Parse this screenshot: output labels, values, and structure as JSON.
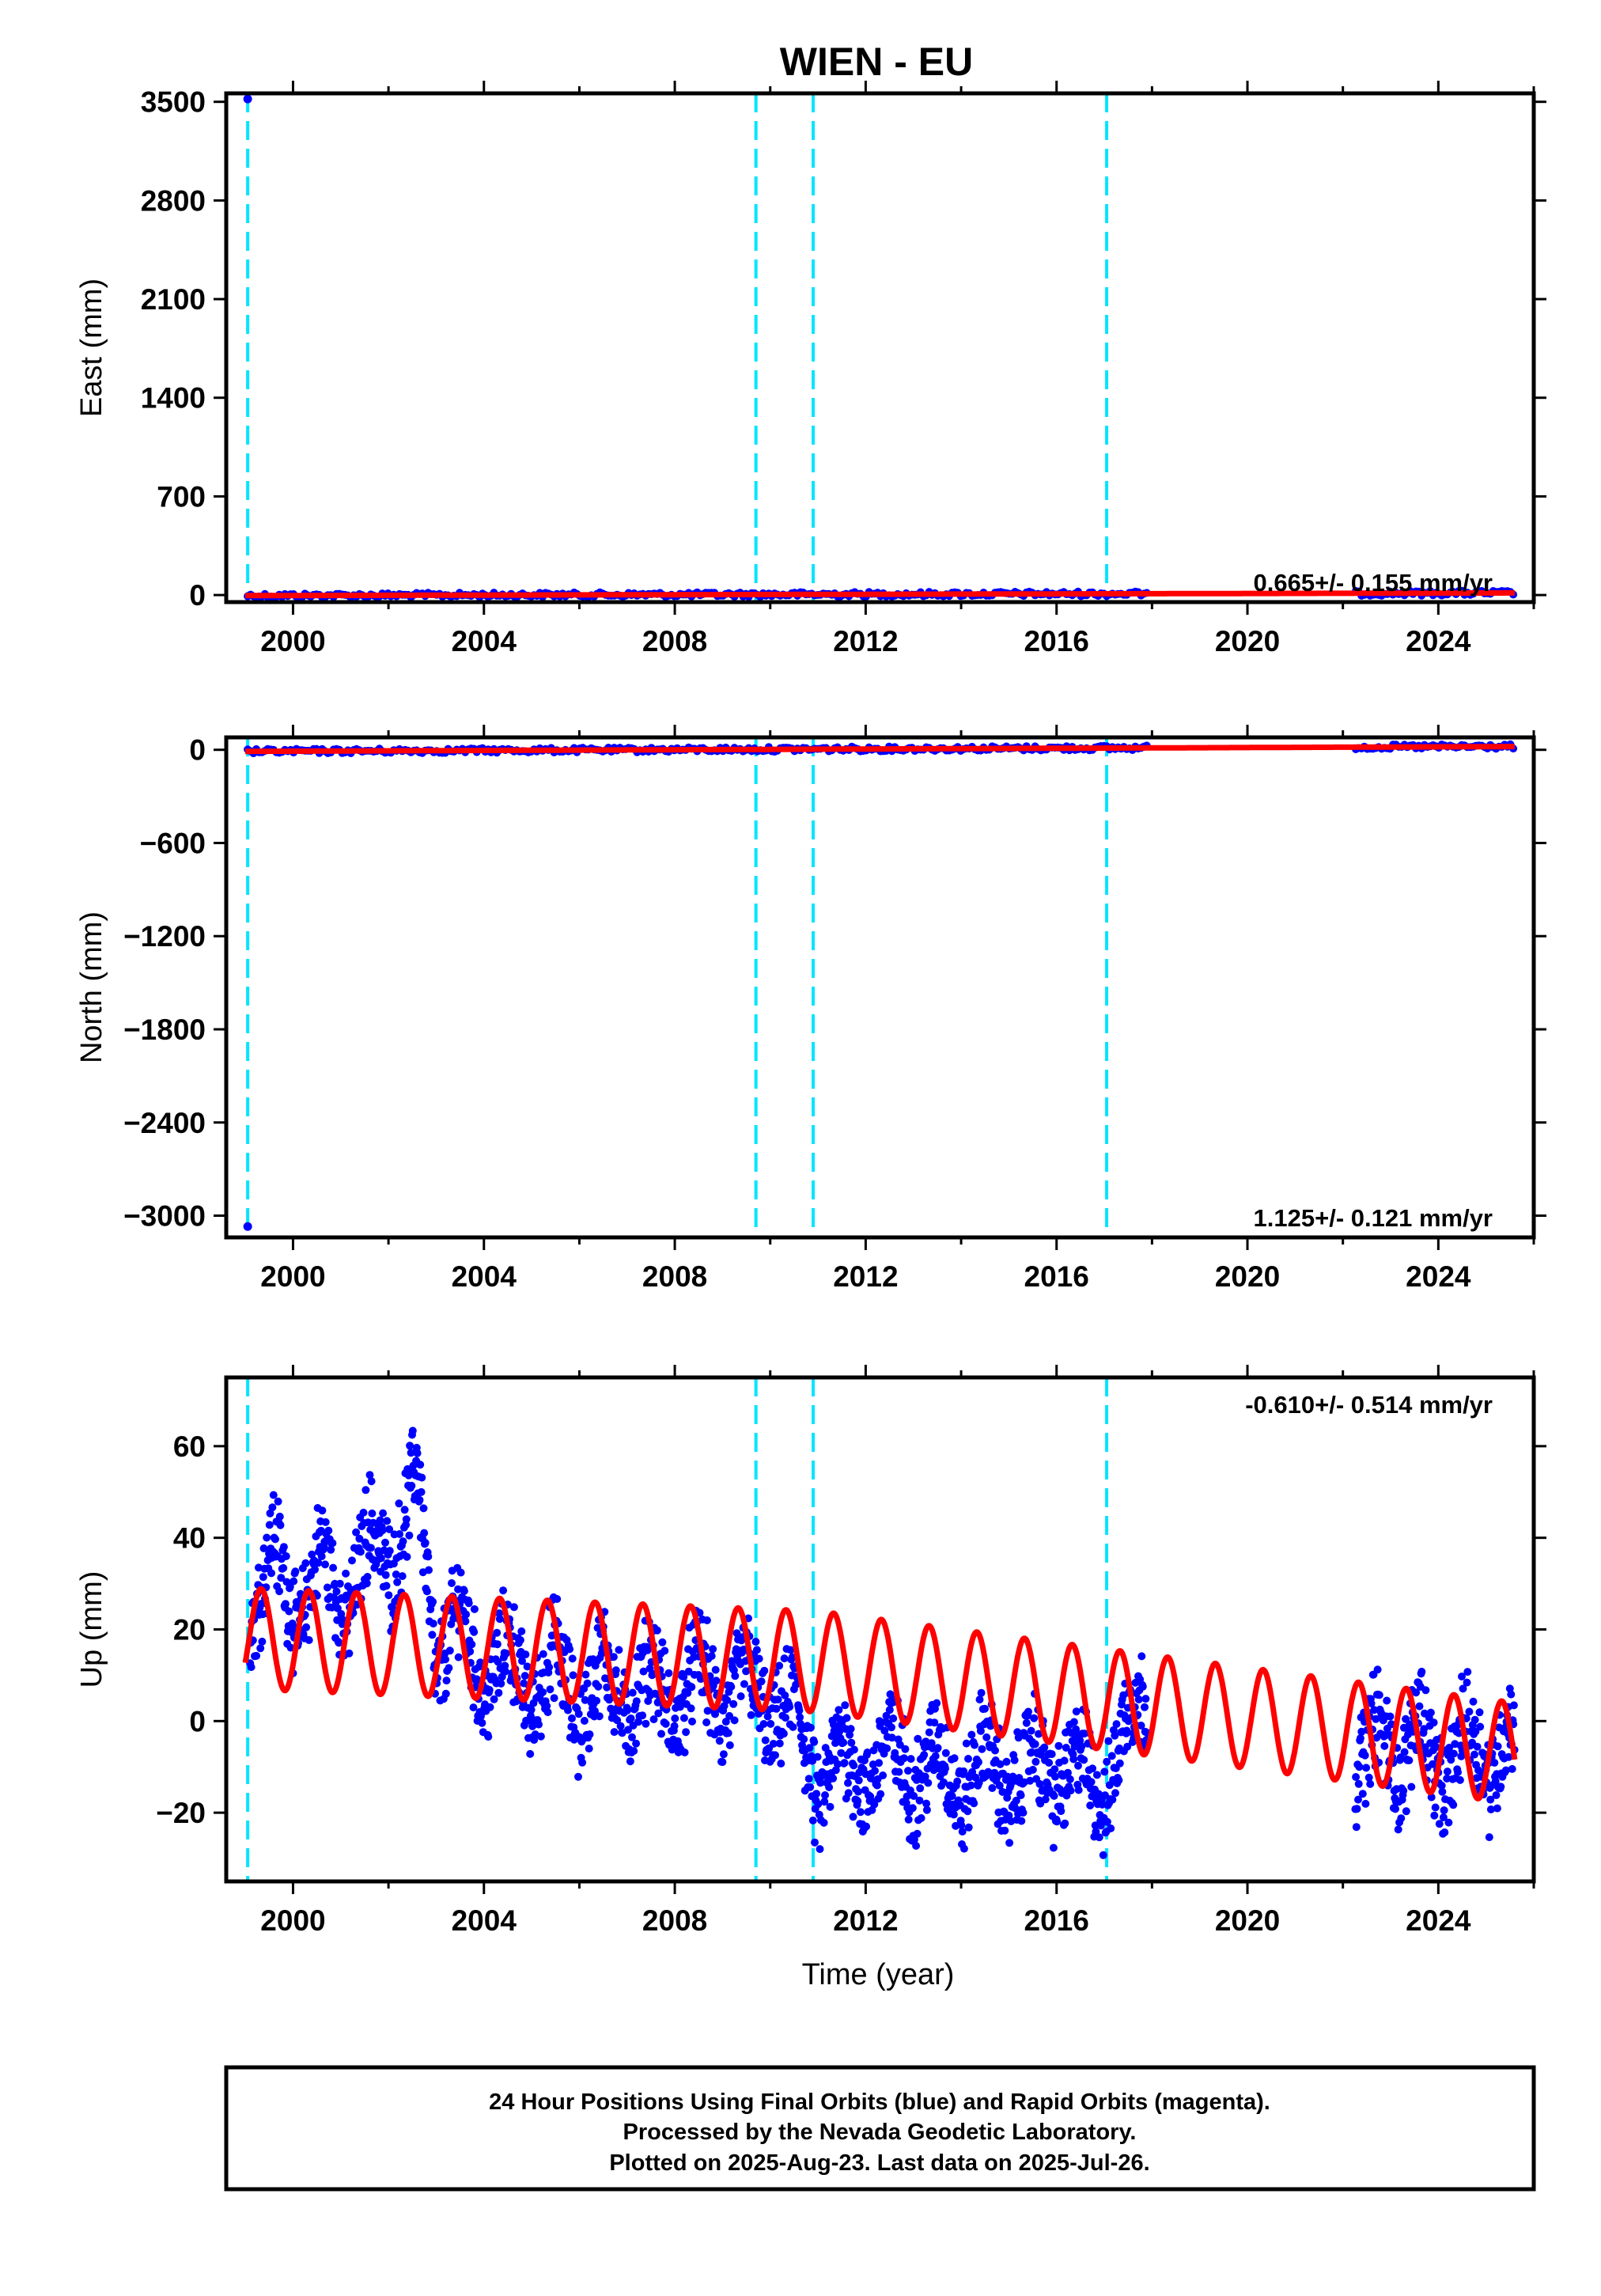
{
  "title": "WIEN - EU",
  "xlabel": "Time (year)",
  "footer": [
    "24 Hour Positions Using Final Orbits (blue) and Rapid Orbits (magenta).",
    "Processed by the Nevada Geodetic Laboratory.",
    "Plotted on 2025-Aug-23. Last data on 2025-Jul-26."
  ],
  "colors": {
    "data": "#0000ff",
    "model": "#ff0000",
    "breaks": "#00e5ff",
    "frame": "#000000"
  },
  "chart_data": [
    {
      "type": "scatter",
      "ylabel": "East (mm)",
      "rate_label": "0.665+/- 0.155 mm/yr",
      "xlim": [
        1998.6,
        2026.0
      ],
      "ylim": [
        -50,
        3560
      ],
      "xticks": [
        2000,
        2004,
        2008,
        2012,
        2016,
        2020,
        2024
      ],
      "yticks": [
        0,
        700,
        1400,
        2100,
        2800,
        3500
      ],
      "breaks": [
        1999.05,
        2009.7,
        2010.9,
        2017.05
      ],
      "outliers": [
        {
          "x": 1999.05,
          "y": 3520
        }
      ],
      "series": [
        {
          "kind": "points",
          "x": [
            1999.0,
            2001.0,
            2003.0,
            2005.0,
            2007.0,
            2009.0,
            2011.0,
            2013.0,
            2015.0,
            2017.5,
            2022.5,
            2025.5
          ],
          "y": [
            -4,
            -3,
            -1,
            1,
            2,
            3,
            5,
            6,
            8,
            9,
            12,
            15
          ]
        },
        {
          "kind": "model",
          "x": [
            1999.0,
            2025.6
          ],
          "y": [
            -4,
            15
          ]
        }
      ]
    },
    {
      "type": "scatter",
      "ylabel": "North (mm)",
      "rate_label": "1.125+/- 0.121 mm/yr",
      "xlim": [
        1998.6,
        2026.0
      ],
      "ylim": [
        -3140,
        80
      ],
      "xticks": [
        2000,
        2004,
        2008,
        2012,
        2016,
        2020,
        2024
      ],
      "yticks": [
        0,
        -600,
        -1200,
        -1800,
        -2400,
        -3000
      ],
      "breaks": [
        1999.05,
        2009.7,
        2010.9,
        2017.05
      ],
      "outliers": [
        {
          "x": 1999.05,
          "y": -3070
        }
      ],
      "series": [
        {
          "kind": "points",
          "x": [
            1999.0,
            2001.0,
            2003.0,
            2005.0,
            2007.0,
            2009.0,
            2011.0,
            2013.0,
            2015.0,
            2017.5,
            2022.5,
            2025.5
          ],
          "y": [
            -10,
            -8,
            -6,
            -3,
            -1,
            2,
            4,
            7,
            9,
            12,
            18,
            21
          ]
        },
        {
          "kind": "model",
          "x": [
            1999.0,
            2025.6
          ],
          "y": [
            -10,
            21
          ]
        }
      ]
    },
    {
      "type": "scatter",
      "ylabel": "Up (mm)",
      "rate_label": "-0.610+/- 0.514 mm/yr",
      "xlim": [
        1998.6,
        2026.0
      ],
      "ylim": [
        -35,
        75
      ],
      "xticks": [
        2000,
        2004,
        2008,
        2012,
        2016,
        2020,
        2024
      ],
      "yticks": [
        -20,
        0,
        20,
        40,
        60
      ],
      "breaks": [
        1999.05,
        2009.7,
        2010.9,
        2017.05
      ],
      "series": [
        {
          "kind": "points",
          "x": [
            1999.2,
            1999.6,
            2000.1,
            2000.6,
            2001.1,
            2001.6,
            2002.1,
            2002.6,
            2003.0,
            2003.5,
            2004.0,
            2004.5,
            2005.0,
            2005.5,
            2006.0,
            2006.5,
            2007.0,
            2007.5,
            2008.0,
            2008.5,
            2009.0,
            2009.5,
            2010.0,
            2010.5,
            2011.0,
            2011.5,
            2012.0,
            2012.5,
            2013.0,
            2013.5,
            2014.0,
            2014.5,
            2015.0,
            2015.5,
            2016.0,
            2016.5,
            2017.0,
            2017.5,
            2022.3,
            2022.7,
            2023.2,
            2023.6,
            2024.1,
            2024.6,
            2025.1,
            2025.5
          ],
          "y": [
            22,
            42,
            18,
            40,
            20,
            44,
            30,
            58,
            8,
            28,
            3,
            20,
            0,
            18,
            -3,
            16,
            -2,
            15,
            -3,
            16,
            -2,
            15,
            -4,
            8,
            -20,
            -2,
            -18,
            -1,
            -17,
            -3,
            -20,
            -2,
            -20,
            -3,
            -18,
            -4,
            -21,
            5,
            -12,
            2,
            -15,
            5,
            -18,
            2,
            -14,
            0
          ]
        },
        {
          "kind": "model",
          "x": [
            1999.0,
            2011.0,
            2025.6
          ],
          "y": [
            18,
            13,
            -7
          ]
        }
      ],
      "seasonal_amplitude_mm": 11
    }
  ]
}
